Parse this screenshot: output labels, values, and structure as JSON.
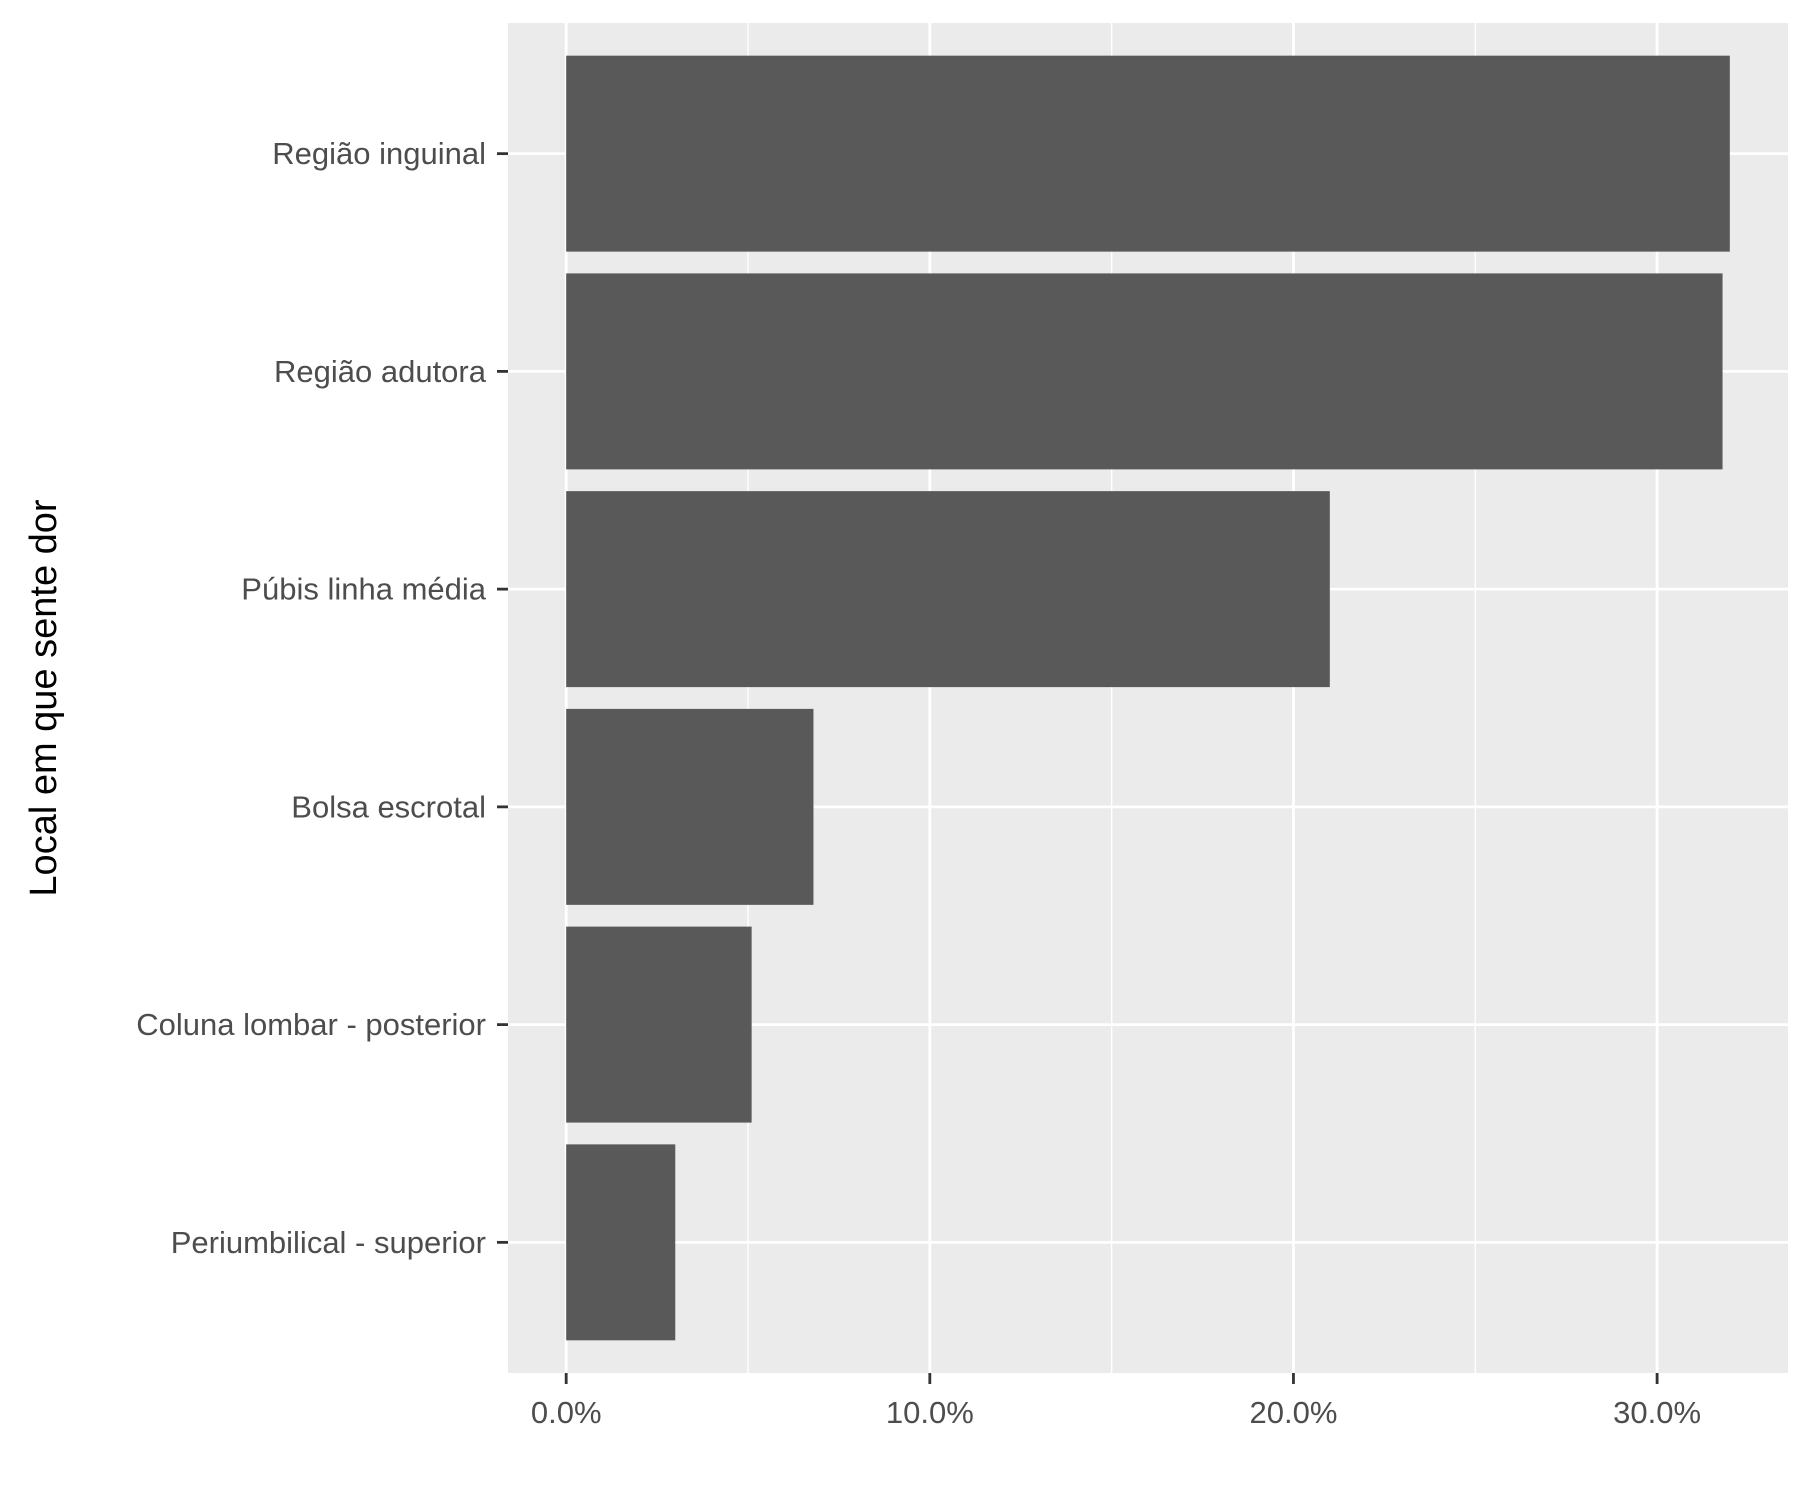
{
  "chart_data": {
    "type": "bar",
    "orientation": "horizontal",
    "title": "",
    "xlabel": "",
    "ylabel": "Local em que sente dor",
    "categories": [
      "Região inguinal",
      "Região adutora",
      "Púbis linha média",
      "Bolsa escrotal",
      "Coluna lombar - posterior",
      "Periumbilical - superior"
    ],
    "values": [
      0.32,
      0.318,
      0.21,
      0.068,
      0.051,
      0.03
    ],
    "value_format": "percent",
    "xlim": [
      -0.016,
      0.336
    ],
    "x_ticks": [
      {
        "value": 0.0,
        "label": "0.0%"
      },
      {
        "value": 0.1,
        "label": "10.0%"
      },
      {
        "value": 0.2,
        "label": "20.0%"
      },
      {
        "value": 0.3,
        "label": "30.0%"
      }
    ],
    "x_minor_ticks": [
      0.05,
      0.15,
      0.25
    ],
    "grid": true,
    "legend": "none",
    "colors": {
      "bar": "#595959",
      "panel_background": "#EBEBEB",
      "grid_line": "#FFFFFF",
      "tick_mark": "#333333",
      "tick_label": "#4D4D4D",
      "axis_title": "#000000"
    }
  }
}
